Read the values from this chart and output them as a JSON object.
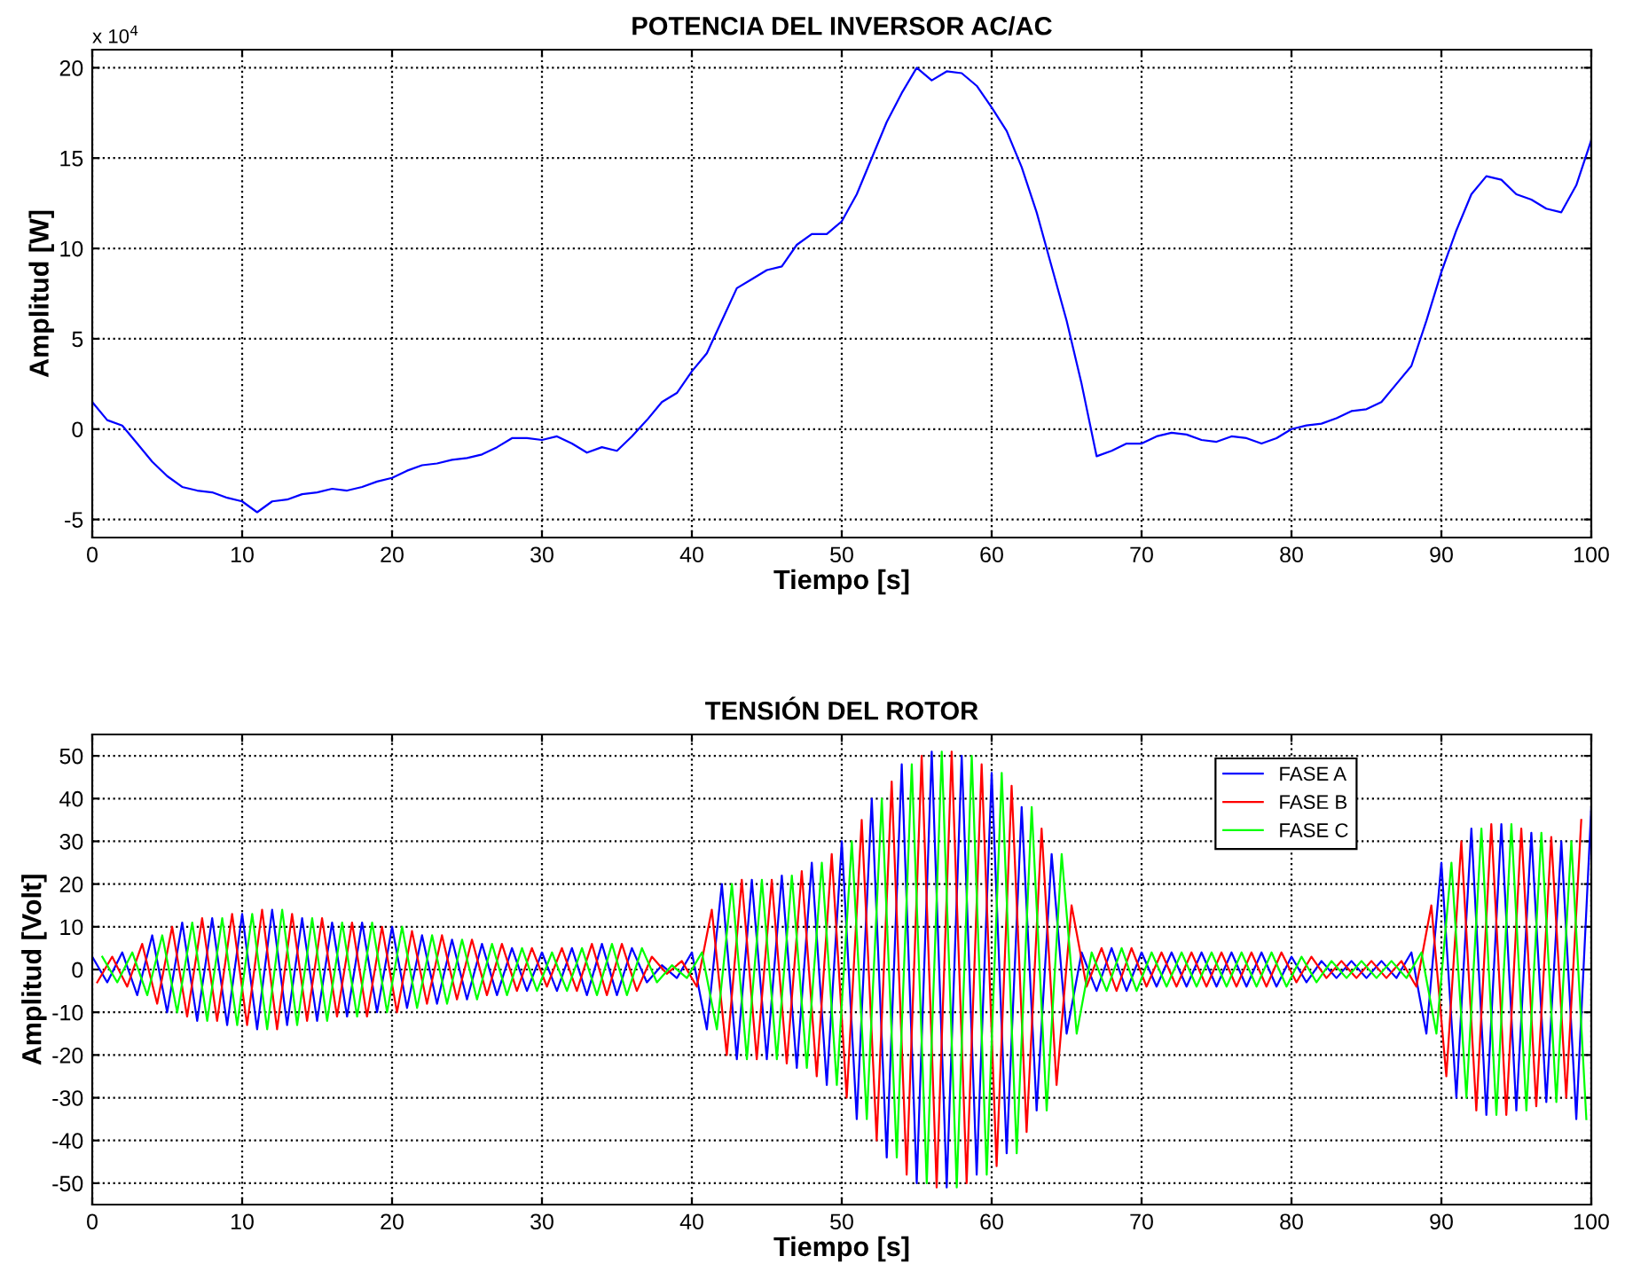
{
  "chart_data": [
    {
      "type": "line",
      "title": "POTENCIA DEL INVERSOR AC/AC",
      "xlabel": "Tiempo [s]",
      "ylabel": "Amplitud [W]",
      "annotations": [
        "x 10$^{4}$"
      ],
      "x": [
        0,
        1,
        2,
        3,
        4,
        5,
        6,
        7,
        8,
        9,
        10,
        11,
        12,
        13,
        14,
        15,
        16,
        17,
        18,
        19,
        20,
        21,
        22,
        23,
        24,
        25,
        26,
        27,
        28,
        29,
        30,
        31,
        32,
        33,
        34,
        35,
        36,
        37,
        38,
        39,
        40,
        41,
        42,
        43,
        44,
        45,
        46,
        47,
        48,
        49,
        50,
        51,
        52,
        53,
        54,
        55,
        56,
        57,
        58,
        59,
        60,
        61,
        62,
        63,
        64,
        65,
        66,
        67,
        68,
        69,
        70,
        71,
        72,
        73,
        74,
        75,
        76,
        77,
        78,
        79,
        80,
        81,
        82,
        83,
        84,
        85,
        86,
        87,
        88,
        89,
        90,
        91,
        92,
        93,
        94,
        95,
        96,
        97,
        98,
        99,
        100
      ],
      "series": [
        {
          "color": "#0000ff",
          "values": [
            1.5,
            0.5,
            0.2,
            -0.8,
            -1.8,
            -2.6,
            -3.2,
            -3.4,
            -3.5,
            -3.8,
            -4.0,
            -4.6,
            -4.0,
            -3.9,
            -3.6,
            -3.5,
            -3.3,
            -3.4,
            -3.2,
            -2.9,
            -2.7,
            -2.3,
            -2.0,
            -1.9,
            -1.7,
            -1.6,
            -1.4,
            -1.0,
            -0.5,
            -0.5,
            -0.6,
            -0.4,
            -0.8,
            -1.3,
            -1.0,
            -1.2,
            -0.4,
            0.5,
            1.5,
            2.0,
            3.2,
            4.2,
            6.0,
            7.8,
            8.3,
            8.8,
            9.0,
            10.2,
            10.8,
            10.8,
            11.5,
            13.0,
            15.0,
            17.0,
            18.6,
            20.0,
            19.3,
            19.8,
            19.7,
            19.0,
            17.8,
            16.5,
            14.5,
            12.0,
            9.0,
            6.0,
            2.5,
            -1.5,
            -1.2,
            -0.8,
            -0.8,
            -0.4,
            -0.2,
            -0.3,
            -0.6,
            -0.7,
            -0.4,
            -0.5,
            -0.8,
            -0.5,
            0.0,
            0.2,
            0.3,
            0.6,
            1.0,
            1.1,
            1.5,
            2.5,
            3.5,
            6.0,
            8.7,
            11.0,
            13.0,
            14.0,
            13.8,
            13.0,
            12.7,
            12.2,
            12.0,
            13.5,
            16.0
          ]
        }
      ],
      "xlim": [
        0,
        100
      ],
      "xticks": [
        0,
        10,
        20,
        30,
        40,
        50,
        60,
        70,
        80,
        90,
        100
      ],
      "ylim": [
        -6,
        21
      ],
      "yticks": [
        -5,
        0,
        5,
        10,
        15,
        20
      ],
      "grid": true,
      "line_style": "solid",
      "marker": "none"
    },
    {
      "type": "line",
      "title": "TENSIÓN DEL ROTOR",
      "xlabel": "Tiempo [s]",
      "ylabel": "Amplitud [Volt]",
      "x": [
        0,
        1,
        2,
        3,
        4,
        5,
        6,
        7,
        8,
        9,
        10,
        11,
        12,
        13,
        14,
        15,
        16,
        17,
        18,
        19,
        20,
        21,
        22,
        23,
        24,
        25,
        26,
        27,
        28,
        29,
        30,
        31,
        32,
        33,
        34,
        35,
        36,
        37,
        38,
        39,
        40,
        41,
        42,
        43,
        44,
        45,
        46,
        47,
        48,
        49,
        50,
        51,
        52,
        53,
        54,
        55,
        56,
        57,
        58,
        59,
        60,
        61,
        62,
        63,
        64,
        65,
        66,
        67,
        68,
        69,
        70,
        71,
        72,
        73,
        74,
        75,
        76,
        77,
        78,
        79,
        80,
        81,
        82,
        83,
        84,
        85,
        86,
        87,
        88,
        89,
        90,
        91,
        92,
        93,
        94,
        95,
        96,
        97,
        98,
        99,
        100
      ],
      "series": [
        {
          "name": "FASE A",
          "color": "#0000ff",
          "values": [
            3,
            -3,
            4,
            -6,
            8,
            -10,
            11,
            -12,
            12,
            -13,
            13,
            -14,
            14,
            -13,
            12,
            -12,
            11,
            -11,
            11,
            -10,
            10,
            -9,
            8,
            -8,
            7,
            -7,
            6,
            -6,
            5,
            -5,
            4,
            -5,
            5,
            -6,
            6,
            -6,
            5,
            -3,
            1,
            -2,
            4,
            -14,
            20,
            -21,
            21,
            -21,
            22,
            -23,
            25,
            -27,
            30,
            -35,
            40,
            -44,
            48,
            -50,
            51,
            -51,
            50,
            -48,
            46,
            -43,
            38,
            -33,
            27,
            -15,
            4,
            -5,
            5,
            -5,
            4,
            -4,
            4,
            -4,
            4,
            -4,
            4,
            -4,
            4,
            -4,
            3,
            -3,
            2,
            -2,
            2,
            -2,
            2,
            -2,
            4,
            -15,
            25,
            -30,
            33,
            -34,
            34,
            -33,
            32,
            -31,
            30,
            -35,
            38
          ]
        },
        {
          "name": "FASE B",
          "color": "#ff0000",
          "x": [
            0.33,
            1.33,
            2.33,
            3.33,
            4.33,
            5.33,
            6.33,
            7.33,
            8.33,
            9.33,
            10.33,
            11.33,
            12.33,
            13.33,
            14.33,
            15.33,
            16.33,
            17.33,
            18.33,
            19.33,
            20.33,
            21.33,
            22.33,
            23.33,
            24.33,
            25.33,
            26.33,
            27.33,
            28.33,
            29.33,
            30.33,
            31.33,
            32.33,
            33.33,
            34.33,
            35.33,
            36.33,
            37.33,
            38.33,
            39.33,
            40.33,
            41.33,
            42.33,
            43.33,
            44.33,
            45.33,
            46.33,
            47.33,
            48.33,
            49.33,
            50.33,
            51.33,
            52.33,
            53.33,
            54.33,
            55.33,
            56.33,
            57.33,
            58.33,
            59.33,
            60.33,
            61.33,
            62.33,
            63.33,
            64.33,
            65.33,
            66.33,
            67.33,
            68.33,
            69.33,
            70.33,
            71.33,
            72.33,
            73.33,
            74.33,
            75.33,
            76.33,
            77.33,
            78.33,
            79.33,
            80.33,
            81.33,
            82.33,
            83.33,
            84.33,
            85.33,
            86.33,
            87.33,
            88.33,
            89.33,
            90.33,
            91.33,
            92.33,
            93.33,
            94.33,
            95.33,
            96.33,
            97.33,
            98.33,
            99.33
          ],
          "values": [
            -3,
            3,
            -4,
            6,
            -8,
            10,
            -11,
            12,
            -12,
            13,
            -13,
            14,
            -14,
            13,
            -12,
            12,
            -11,
            11,
            -11,
            10,
            -10,
            9,
            -8,
            8,
            -7,
            7,
            -6,
            6,
            -5,
            5,
            -4,
            5,
            -5,
            6,
            -6,
            6,
            -5,
            3,
            -1,
            2,
            -4,
            14,
            -20,
            21,
            -21,
            21,
            -22,
            23,
            -25,
            27,
            -30,
            35,
            -40,
            44,
            -48,
            50,
            -51,
            51,
            -50,
            48,
            -46,
            43,
            -38,
            33,
            -27,
            15,
            -4,
            5,
            -5,
            5,
            -4,
            4,
            -4,
            4,
            -4,
            4,
            -4,
            4,
            -4,
            4,
            -3,
            3,
            -2,
            2,
            -2,
            2,
            -2,
            2,
            -4,
            15,
            -25,
            30,
            -33,
            34,
            -34,
            33,
            -32,
            31,
            -30,
            35
          ]
        },
        {
          "name": "FASE C",
          "color": "#00ff00",
          "x": [
            0.67,
            1.67,
            2.67,
            3.67,
            4.67,
            5.67,
            6.67,
            7.67,
            8.67,
            9.67,
            10.67,
            11.67,
            12.67,
            13.67,
            14.67,
            15.67,
            16.67,
            17.67,
            18.67,
            19.67,
            20.67,
            21.67,
            22.67,
            23.67,
            24.67,
            25.67,
            26.67,
            27.67,
            28.67,
            29.67,
            30.67,
            31.67,
            32.67,
            33.67,
            34.67,
            35.67,
            36.67,
            37.67,
            38.67,
            39.67,
            40.67,
            41.67,
            42.67,
            43.67,
            44.67,
            45.67,
            46.67,
            47.67,
            48.67,
            49.67,
            50.67,
            51.67,
            52.67,
            53.67,
            54.67,
            55.67,
            56.67,
            57.67,
            58.67,
            59.67,
            60.67,
            61.67,
            62.67,
            63.67,
            64.67,
            65.67,
            66.67,
            67.67,
            68.67,
            69.67,
            70.67,
            71.67,
            72.67,
            73.67,
            74.67,
            75.67,
            76.67,
            77.67,
            78.67,
            79.67,
            80.67,
            81.67,
            82.67,
            83.67,
            84.67,
            85.67,
            86.67,
            87.67,
            88.67,
            89.67,
            90.67,
            91.67,
            92.67,
            93.67,
            94.67,
            95.67,
            96.67,
            97.67,
            98.67,
            99.67
          ],
          "values": [
            3,
            -3,
            4,
            -6,
            8,
            -10,
            11,
            -12,
            12,
            -13,
            13,
            -14,
            14,
            -13,
            12,
            -12,
            11,
            -11,
            11,
            -10,
            10,
            -9,
            8,
            -8,
            7,
            -7,
            6,
            -6,
            5,
            -5,
            4,
            -5,
            5,
            -6,
            6,
            -6,
            5,
            -3,
            1,
            -2,
            4,
            -14,
            20,
            -21,
            21,
            -21,
            22,
            -23,
            25,
            -27,
            30,
            -35,
            40,
            -44,
            48,
            -50,
            51,
            -51,
            50,
            -48,
            46,
            -43,
            38,
            -33,
            27,
            -15,
            4,
            -5,
            5,
            -5,
            4,
            -4,
            4,
            -4,
            4,
            -4,
            4,
            -4,
            4,
            -4,
            3,
            -3,
            2,
            -2,
            2,
            -2,
            2,
            -2,
            4,
            -15,
            25,
            -30,
            33,
            -34,
            34,
            -33,
            32,
            -31,
            30,
            -35
          ]
        }
      ],
      "xlim": [
        0,
        100
      ],
      "xticks": [
        0,
        10,
        20,
        30,
        40,
        50,
        60,
        70,
        80,
        90,
        100
      ],
      "ylim": [
        -55,
        55
      ],
      "yticks": [
        -50,
        -40,
        -30,
        -20,
        -10,
        0,
        10,
        20,
        30,
        40,
        50
      ],
      "grid": true,
      "legend": "top right",
      "line_style": "solid",
      "marker": "none"
    }
  ]
}
